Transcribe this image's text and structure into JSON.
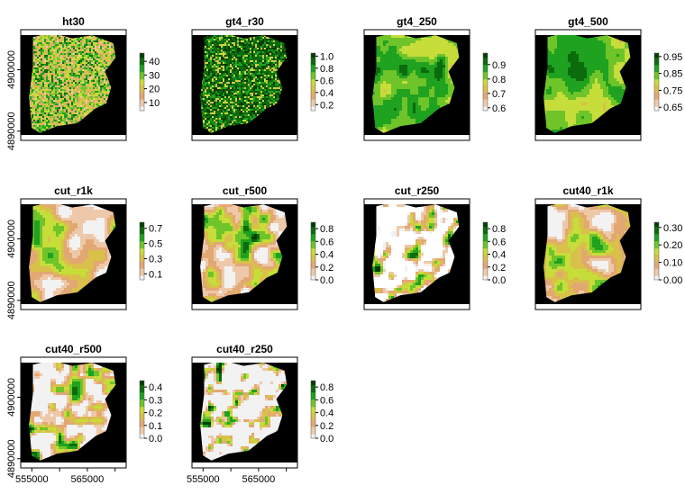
{
  "chart_data": {
    "type": "heatmap",
    "layout": {
      "rows": 3,
      "cols": 4
    },
    "background_color": "#000000",
    "na_color": "#ffffff",
    "x_ticks": [
      "555000",
      "565000"
    ],
    "y_ticks": [
      "4890000",
      "4900000"
    ],
    "x_tick_values": [
      555000,
      565000
    ],
    "y_tick_values": [
      4890000,
      4900000
    ],
    "xlim": [
      553000,
      572000
    ],
    "ylim": [
      4888500,
      4906500
    ],
    "palette": [
      "#f2f2f2",
      "#eec9a9",
      "#e2a873",
      "#d9c04a",
      "#c6dd3a",
      "#6fc42a",
      "#1fa21f",
      "#0c6b0c",
      "#063d06"
    ],
    "panels": [
      {
        "title": "ht30",
        "legend_ticks": [
          "10",
          "20",
          "30",
          "40"
        ],
        "legend_tick_values": [
          10,
          20,
          30,
          40
        ],
        "range": [
          4,
          46
        ],
        "pattern": "noise",
        "row": 0,
        "col": 0
      },
      {
        "title": "gt4_r30",
        "legend_ticks": [
          "0.2",
          "0.4",
          "0.6",
          "0.8",
          "1.0"
        ],
        "legend_tick_values": [
          0.2,
          0.4,
          0.6,
          0.8,
          1.0
        ],
        "range": [
          0.1,
          1.05
        ],
        "pattern": "noise_high",
        "row": 0,
        "col": 1
      },
      {
        "title": "gt4_250",
        "legend_ticks": [
          "0.6",
          "0.7",
          "0.8",
          "0.9"
        ],
        "legend_tick_values": [
          0.6,
          0.7,
          0.8,
          0.9
        ],
        "range": [
          0.58,
          0.98
        ],
        "pattern": "smooth_high",
        "row": 0,
        "col": 2
      },
      {
        "title": "gt4_500",
        "legend_ticks": [
          "0.65",
          "0.75",
          "0.85",
          "0.95"
        ],
        "legend_tick_values": [
          0.65,
          0.75,
          0.85,
          0.95
        ],
        "range": [
          0.63,
          0.97
        ],
        "pattern": "smooth_high2",
        "row": 0,
        "col": 3
      },
      {
        "title": "cut_r1k",
        "legend_ticks": [
          "0.1",
          "0.3",
          "0.5",
          "0.7"
        ],
        "legend_tick_values": [
          0.1,
          0.3,
          0.5,
          0.7
        ],
        "range": [
          0.02,
          0.78
        ],
        "pattern": "smooth_mid",
        "row": 1,
        "col": 0
      },
      {
        "title": "cut_r500",
        "legend_ticks": [
          "0.0",
          "0.2",
          "0.4",
          "0.6",
          "0.8"
        ],
        "legend_tick_values": [
          0.0,
          0.2,
          0.4,
          0.6,
          0.8
        ],
        "range": [
          0.0,
          0.9
        ],
        "pattern": "blobs_mid",
        "row": 1,
        "col": 1
      },
      {
        "title": "cut_r250",
        "legend_ticks": [
          "0.0",
          "0.2",
          "0.4",
          "0.6",
          "0.8"
        ],
        "legend_tick_values": [
          0.0,
          0.2,
          0.4,
          0.6,
          0.8
        ],
        "range": [
          0.0,
          0.9
        ],
        "pattern": "blobs_sparse",
        "row": 1,
        "col": 2
      },
      {
        "title": "cut40_r1k",
        "legend_ticks": [
          "0.00",
          "0.10",
          "0.20",
          "0.30"
        ],
        "legend_tick_values": [
          0.0,
          0.1,
          0.2,
          0.3
        ],
        "range": [
          0.0,
          0.33
        ],
        "pattern": "smooth_low",
        "row": 1,
        "col": 3
      },
      {
        "title": "cut40_r500",
        "legend_ticks": [
          "0.0",
          "0.1",
          "0.2",
          "0.3",
          "0.4"
        ],
        "legend_tick_values": [
          0.0,
          0.1,
          0.2,
          0.3,
          0.4
        ],
        "range": [
          0.0,
          0.45
        ],
        "pattern": "blobs_low",
        "row": 2,
        "col": 0
      },
      {
        "title": "cut40_r250",
        "legend_ticks": [
          "0.0",
          "0.2",
          "0.4",
          "0.6",
          "0.8"
        ],
        "legend_tick_values": [
          0.0,
          0.2,
          0.4,
          0.6,
          0.8
        ],
        "range": [
          0.0,
          0.9
        ],
        "pattern": "dots_sparse",
        "row": 2,
        "col": 1
      }
    ]
  }
}
